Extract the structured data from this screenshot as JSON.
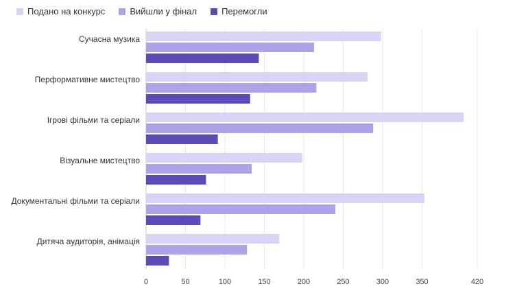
{
  "chart_data": {
    "type": "bar",
    "orientation": "horizontal",
    "title": "",
    "xlabel": "",
    "ylabel": "",
    "categories": [
      "Сучасна музика",
      "Перформативне мистецтво",
      "Ігрові фільми та серіали",
      "Візуальне мистецтво",
      "Документальні фільми та серіали",
      "Дитяча аудиторія, анімація"
    ],
    "series": [
      {
        "name": "Подано на конкурс",
        "color": "#d9d3f6",
        "values": [
          298,
          281,
          403,
          198,
          353,
          169
        ]
      },
      {
        "name": "Вийшли у фінал",
        "color": "#aea2e8",
        "values": [
          213,
          216,
          288,
          134,
          240,
          128
        ]
      },
      {
        "name": "Перемогли",
        "color": "#5a4bb8",
        "values": [
          143,
          132,
          91,
          76,
          69,
          29
        ]
      }
    ],
    "xlim": [
      0,
      420
    ],
    "xticks": [
      "0",
      "50",
      "100",
      "150",
      "200",
      "250",
      "300",
      "350",
      "420"
    ],
    "xtick_values": [
      0,
      50,
      100,
      150,
      200,
      250,
      300,
      350,
      420
    ],
    "grid": true,
    "legend_position": "top-left"
  }
}
